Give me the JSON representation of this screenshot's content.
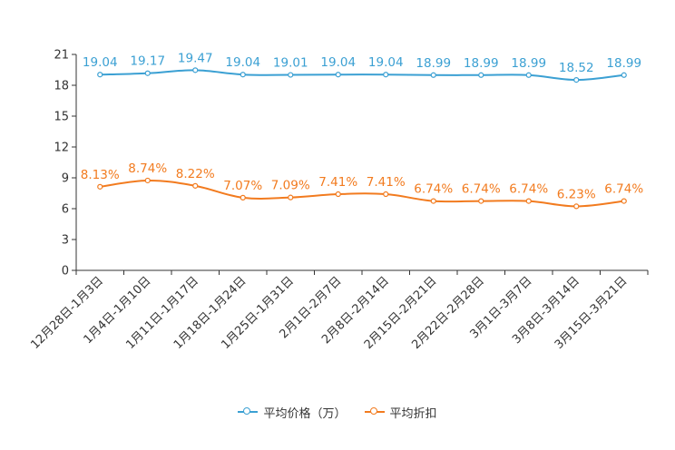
{
  "chart_data": {
    "type": "line",
    "categories": [
      "12月28日-1月3日",
      "1月4日-1月10日",
      "1月11日-1月17日",
      "1月18日-1月24日",
      "1月25日-1月31日",
      "2月1日-2月7日",
      "2月8日-2月14日",
      "2月15日-2月21日",
      "2月22日-2月28日",
      "3月1日-3月7日",
      "3月8日-3月14日",
      "3月15日-3月21日"
    ],
    "ylim": [
      0,
      21
    ],
    "yticks": [
      0,
      3,
      6,
      9,
      12,
      15,
      18,
      21
    ],
    "series": [
      {
        "name": "平均价格（万）",
        "color": "#3ba0d3",
        "values": [
          19.04,
          19.17,
          19.47,
          19.04,
          19.01,
          19.04,
          19.04,
          18.99,
          18.99,
          18.99,
          18.52,
          18.99
        ],
        "labels": [
          "19.04",
          "19.17",
          "19.47",
          "19.04",
          "19.01",
          "19.04",
          "19.04",
          "18.99",
          "18.99",
          "18.99",
          "18.52",
          "18.99"
        ]
      },
      {
        "name": "平均折扣",
        "color": "#f27b1f",
        "values": [
          8.13,
          8.74,
          8.22,
          7.07,
          7.09,
          7.41,
          7.41,
          6.74,
          6.74,
          6.74,
          6.23,
          6.74
        ],
        "labels": [
          "8.13%",
          "8.74%",
          "8.22%",
          "7.07%",
          "7.09%",
          "7.41%",
          "7.41%",
          "6.74%",
          "6.74%",
          "6.74%",
          "6.23%",
          "6.74%"
        ]
      }
    ],
    "legend": [
      "平均价格（万）",
      "平均折扣"
    ],
    "legend_position": "bottom"
  }
}
